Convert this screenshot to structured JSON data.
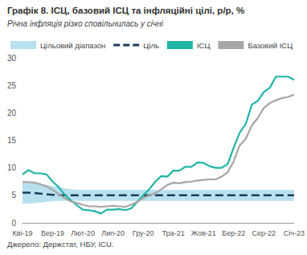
{
  "chart_data": {
    "type": "line",
    "title": "Графік 8. ІСЦ, базовий ІСЦ та інфляційні цілі, р/р, %",
    "subtitle": "Річна інфляція різко сповільнилась у січні",
    "source": "Джерело: Держстат, НБУ, ICU.",
    "categories": [
      "Кві-19",
      null,
      null,
      null,
      null,
      "Вер-19",
      null,
      null,
      null,
      null,
      "Лют-20",
      null,
      null,
      null,
      null,
      "Лип-20",
      null,
      null,
      null,
      null,
      "Гру-20",
      null,
      null,
      null,
      null,
      "Тра-21",
      null,
      null,
      null,
      null,
      "Жов-21",
      null,
      null,
      null,
      null,
      "Бер-22",
      null,
      null,
      null,
      null,
      "Сер-22",
      null,
      null,
      null,
      null,
      "Січ-23"
    ],
    "series": [
      {
        "name": "Цільовий діапазон",
        "type": "area",
        "color": "#b7e1ee",
        "values": [
          7.5,
          7.5,
          7.3,
          7.1,
          6.9,
          6.7,
          6.5,
          6.3,
          6.1,
          6,
          6,
          6,
          6,
          6,
          6,
          6,
          6,
          6,
          6,
          6,
          6,
          6,
          6,
          6,
          6,
          6,
          6,
          6,
          6,
          6,
          6,
          6,
          6,
          6,
          6,
          6,
          6,
          6,
          6,
          6,
          6,
          6,
          6,
          6,
          6,
          6
        ],
        "lower": [
          3.5,
          3.5,
          3.6,
          3.7,
          3.8,
          3.9,
          4,
          4,
          4,
          4,
          4,
          4,
          4,
          4,
          4,
          4,
          4,
          4,
          4,
          4,
          4,
          4,
          4,
          4,
          4,
          4,
          4,
          4,
          4,
          4,
          4,
          4,
          4,
          4,
          4,
          4,
          4,
          4,
          4,
          4,
          4,
          4,
          4,
          4,
          4,
          4
        ]
      },
      {
        "name": "Ціль",
        "type": "line",
        "color": "#1f3a5f",
        "line_style": "dashed",
        "values": [
          5.5,
          5.5,
          5.4,
          5.3,
          5.2,
          5.1,
          5,
          5,
          5,
          5,
          5,
          5,
          5,
          5,
          5,
          5,
          5,
          5,
          5,
          5,
          5,
          5,
          5,
          5,
          5,
          5,
          5,
          5,
          5,
          5,
          5,
          5,
          5,
          5,
          5,
          5,
          5,
          5,
          5,
          5,
          5,
          5,
          5,
          5,
          5,
          5
        ]
      },
      {
        "name": "ІСЦ",
        "type": "line",
        "color": "#1fb5a5",
        "line_style": "solid",
        "values": [
          8.8,
          9.6,
          9.0,
          9.0,
          8.8,
          7.5,
          6.5,
          5.1,
          4.1,
          3.2,
          2.4,
          2.3,
          2.1,
          1.7,
          2.4,
          2.4,
          2.5,
          2.3,
          2.6,
          3.8,
          5.0,
          6.1,
          7.5,
          8.5,
          8.4,
          9.5,
          9.5,
          10.2,
          10.2,
          11.0,
          10.9,
          10.3,
          10.0,
          10.0,
          10.7,
          13.7,
          16.4,
          18.0,
          21.5,
          22.2,
          23.8,
          24.6,
          26.6,
          26.6,
          26.6,
          26.0
        ]
      },
      {
        "name": "Базовий ІСЦ",
        "type": "line",
        "color": "#a6a6a6",
        "line_style": "solid",
        "values": [
          7.4,
          7.4,
          7.3,
          7.0,
          6.6,
          6.0,
          5.2,
          4.5,
          3.9,
          3.6,
          3.3,
          3.0,
          3.0,
          2.9,
          3.0,
          3.1,
          3.0,
          2.9,
          3.3,
          3.8,
          4.5,
          5.0,
          5.4,
          6.1,
          6.9,
          7.3,
          7.2,
          7.4,
          7.5,
          7.7,
          7.8,
          7.9,
          7.9,
          8.4,
          9.2,
          11.2,
          14.1,
          15.3,
          17.7,
          19.1,
          20.9,
          21.8,
          22.3,
          22.7,
          22.9,
          23.3
        ]
      }
    ],
    "ylim": [
      0,
      30
    ],
    "yticks": [
      0,
      5,
      10,
      15,
      20,
      25,
      30
    ],
    "grid": false,
    "legend": "top"
  }
}
